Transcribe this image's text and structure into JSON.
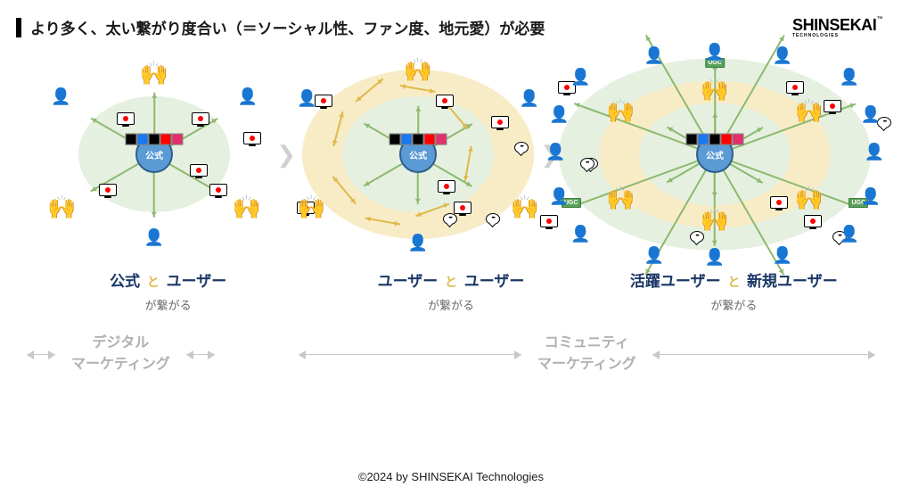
{
  "title": "より多く、太い繋がり度合い（＝ソーシャル性、ファン度、地元愛）が必要",
  "brand": {
    "name": "SHINSEKAI",
    "sub": "TECHNOLOGIES",
    "tm": "™"
  },
  "colors": {
    "navy": "#1a3766",
    "accent": "#e0b94a",
    "ring_green": "#e5f0e0",
    "ring_yellow": "#f8ecc7",
    "center_blue": "#5b9bd5",
    "center_border": "#2f5e8c",
    "arrow_green": "#8db96e",
    "arrow_yellow": "#e0b94a",
    "ugc_green": "#59a159",
    "gray": "#b0b0b0"
  },
  "center_label": "公式",
  "apps": [
    {
      "name": "tiktok",
      "bg": "#000"
    },
    {
      "name": "facebook",
      "bg": "#1877f2"
    },
    {
      "name": "x",
      "bg": "#000"
    },
    {
      "name": "youtube",
      "bg": "#ff0000"
    },
    {
      "name": "instagram",
      "bg": "#e1306c"
    }
  ],
  "ugc_label": "UGC",
  "stages": [
    {
      "heading_a": "公式",
      "conj": "と",
      "heading_b": "ユーザー",
      "sub": "が繋がる",
      "rings": 1
    },
    {
      "heading_a": "ユーザー",
      "conj": "と",
      "heading_b": "ユーザー",
      "sub": "が繋がる",
      "rings": 2
    },
    {
      "heading_a": "活躍ユーザー",
      "conj": "と",
      "heading_b": "新規ユーザー",
      "sub": "が繋がる",
      "rings": 3
    }
  ],
  "bottom": {
    "left": "デジタル\nマーケティング",
    "right": "コミュニティ\nマーケティング"
  },
  "footer": "©2024 by SHINSEKAI Technologies",
  "diagram_layout": {
    "stage1_size": [
      220,
      180
    ],
    "stage2_size": [
      280,
      200
    ],
    "stage3_size": [
      360,
      220
    ],
    "inner_persons_angles": [
      -90,
      -30,
      30,
      90,
      150,
      210
    ],
    "outer_persons_stage3": 16
  }
}
